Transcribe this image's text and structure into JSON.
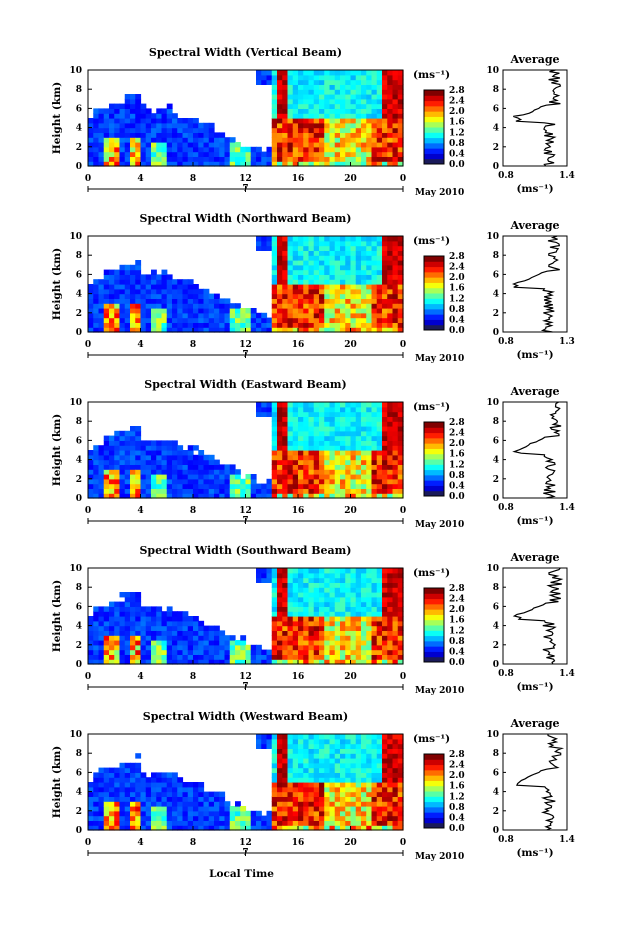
{
  "figure": {
    "xlabel": "Local Time",
    "date_label": "May 2010",
    "day_label": "7",
    "colorbar_unit": "(ms⁻¹)",
    "colorbar_ticks": [
      "0.0",
      "0.4",
      "0.8",
      "1.2",
      "1.6",
      "2.0",
      "2.4",
      "2.8"
    ],
    "avg_title": "Average",
    "avg_xlabel": "(ms⁻¹)"
  },
  "chart_data": [
    {
      "type": "heatmap",
      "title": "Spectral Width (Vertical Beam)",
      "ylabel": "Height (km)",
      "x_ticks": [
        "0",
        "4",
        "8",
        "12",
        "16",
        "20",
        "0"
      ],
      "y_ticks": [
        "0",
        "2",
        "4",
        "6",
        "8",
        "10"
      ],
      "xlim": [
        0,
        24
      ],
      "ylim": [
        0,
        10
      ],
      "colorbar_range": [
        0.0,
        2.8
      ],
      "average_profile": {
        "xlim": [
          0.8,
          1.4
        ],
        "x_ticks": [
          "0.8",
          "1.4"
        ],
        "y_ticks": [
          "0",
          "2",
          "4",
          "6",
          "8",
          "10"
        ]
      }
    },
    {
      "type": "heatmap",
      "title": "Spectral Width (Northward Beam)",
      "ylabel": "Height (km)",
      "x_ticks": [
        "0",
        "4",
        "8",
        "12",
        "16",
        "20",
        "0"
      ],
      "y_ticks": [
        "0",
        "2",
        "4",
        "6",
        "8",
        "10"
      ],
      "xlim": [
        0,
        24
      ],
      "ylim": [
        0,
        10
      ],
      "colorbar_range": [
        0.0,
        2.8
      ],
      "average_profile": {
        "xlim": [
          0.8,
          1.3
        ],
        "x_ticks": [
          "0.8",
          "1.3"
        ],
        "y_ticks": [
          "0",
          "2",
          "4",
          "6",
          "8",
          "10"
        ]
      }
    },
    {
      "type": "heatmap",
      "title": "Spectral Width (Eastward Beam)",
      "ylabel": "Height (km)",
      "x_ticks": [
        "0",
        "4",
        "8",
        "12",
        "16",
        "20",
        "0"
      ],
      "y_ticks": [
        "0",
        "2",
        "4",
        "6",
        "8",
        "10"
      ],
      "xlim": [
        0,
        24
      ],
      "ylim": [
        0,
        10
      ],
      "colorbar_range": [
        0.0,
        2.8
      ],
      "average_profile": {
        "xlim": [
          0.8,
          1.4
        ],
        "x_ticks": [
          "0.8",
          "1.4"
        ],
        "y_ticks": [
          "0",
          "2",
          "4",
          "6",
          "8",
          "10"
        ]
      }
    },
    {
      "type": "heatmap",
      "title": "Spectral Width (Southward Beam)",
      "ylabel": "Height (km)",
      "x_ticks": [
        "0",
        "4",
        "8",
        "12",
        "16",
        "20",
        "0"
      ],
      "y_ticks": [
        "0",
        "2",
        "4",
        "6",
        "8",
        "10"
      ],
      "xlim": [
        0,
        24
      ],
      "ylim": [
        0,
        10
      ],
      "colorbar_range": [
        0.0,
        2.8
      ],
      "average_profile": {
        "xlim": [
          0.8,
          1.4
        ],
        "x_ticks": [
          "0.8",
          "1.4"
        ],
        "y_ticks": [
          "0",
          "2",
          "4",
          "6",
          "8",
          "10"
        ]
      }
    },
    {
      "type": "heatmap",
      "title": "Spectral Width (Westward Beam)",
      "ylabel": "Height (km)",
      "x_ticks": [
        "0",
        "4",
        "8",
        "12",
        "16",
        "20",
        "0"
      ],
      "y_ticks": [
        "0",
        "2",
        "4",
        "6",
        "8",
        "10"
      ],
      "xlim": [
        0,
        24
      ],
      "ylim": [
        0,
        10
      ],
      "colorbar_range": [
        0.0,
        2.8
      ],
      "average_profile": {
        "xlim": [
          0.8,
          1.4
        ],
        "x_ticks": [
          "0.8",
          "1.4"
        ],
        "y_ticks": [
          "0",
          "2",
          "4",
          "6",
          "8",
          "10"
        ]
      }
    }
  ]
}
